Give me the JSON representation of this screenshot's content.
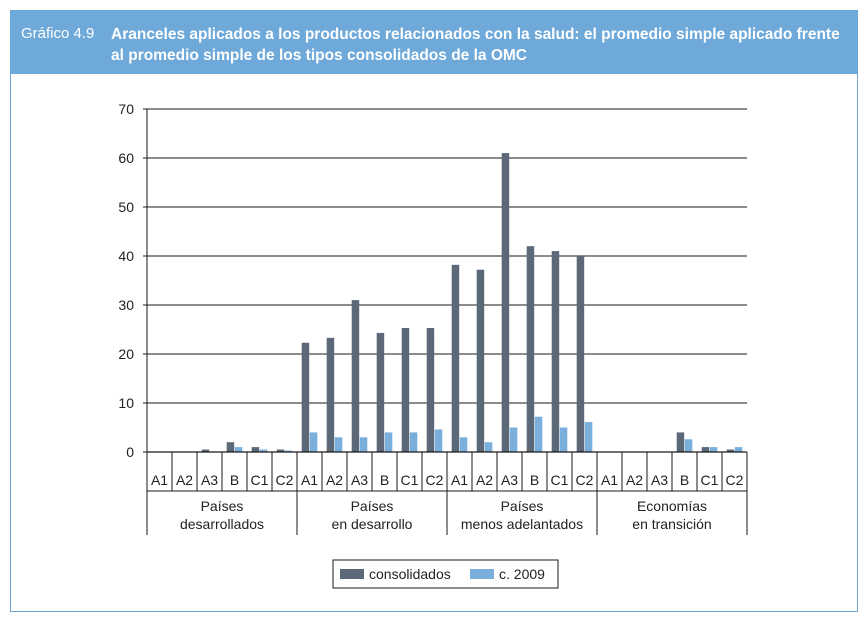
{
  "figure": {
    "label": "Gráfico 4.9",
    "title": "Aranceles aplicados a los productos relacionados con la salud: el promedio simple aplicado frente al promedio simple de los tipos consolidados de la OMC"
  },
  "colors": {
    "header_bg": "#6ea9d9",
    "consolidados": "#5b6877",
    "c2009": "#7aaedb"
  },
  "chart_data": {
    "type": "bar",
    "title": "",
    "xlabel": "",
    "ylabel": "",
    "ylim": [
      0,
      70
    ],
    "yticks": [
      "0",
      "10",
      "20",
      "30",
      "40",
      "50",
      "60",
      "70"
    ],
    "grid": true,
    "legend_position": "bottom",
    "groups": [
      {
        "label_line1": "Países",
        "label_line2": "desarrollados"
      },
      {
        "label_line1": "Países",
        "label_line2": "en desarrollo"
      },
      {
        "label_line1": "Países",
        "label_line2": "menos adelantados"
      },
      {
        "label_line1": "Economías",
        "label_line2": "en transición"
      }
    ],
    "categories": [
      "A1",
      "A2",
      "A3",
      "B",
      "C1",
      "C2",
      "A1",
      "A2",
      "A3",
      "B",
      "C1",
      "C2",
      "A1",
      "A2",
      "A3",
      "B",
      "C1",
      "C2",
      "A1",
      "A2",
      "A3",
      "B",
      "C1",
      "C2"
    ],
    "series": [
      {
        "name": "consolidados",
        "values": [
          0,
          0,
          0.5,
          2,
          1,
          0.5,
          22.3,
          23.3,
          31,
          24.3,
          25.3,
          25.3,
          38.2,
          37.2,
          61,
          42,
          41,
          40,
          0,
          0,
          0,
          4,
          1,
          0.5
        ]
      },
      {
        "name": "c. 2009",
        "values": [
          0,
          0,
          0,
          1,
          0.5,
          0.3,
          4,
          3,
          3,
          4,
          4,
          4.6,
          3,
          2,
          5,
          7.2,
          5,
          6.1,
          0,
          0,
          0,
          2.6,
          1,
          1
        ]
      }
    ]
  }
}
